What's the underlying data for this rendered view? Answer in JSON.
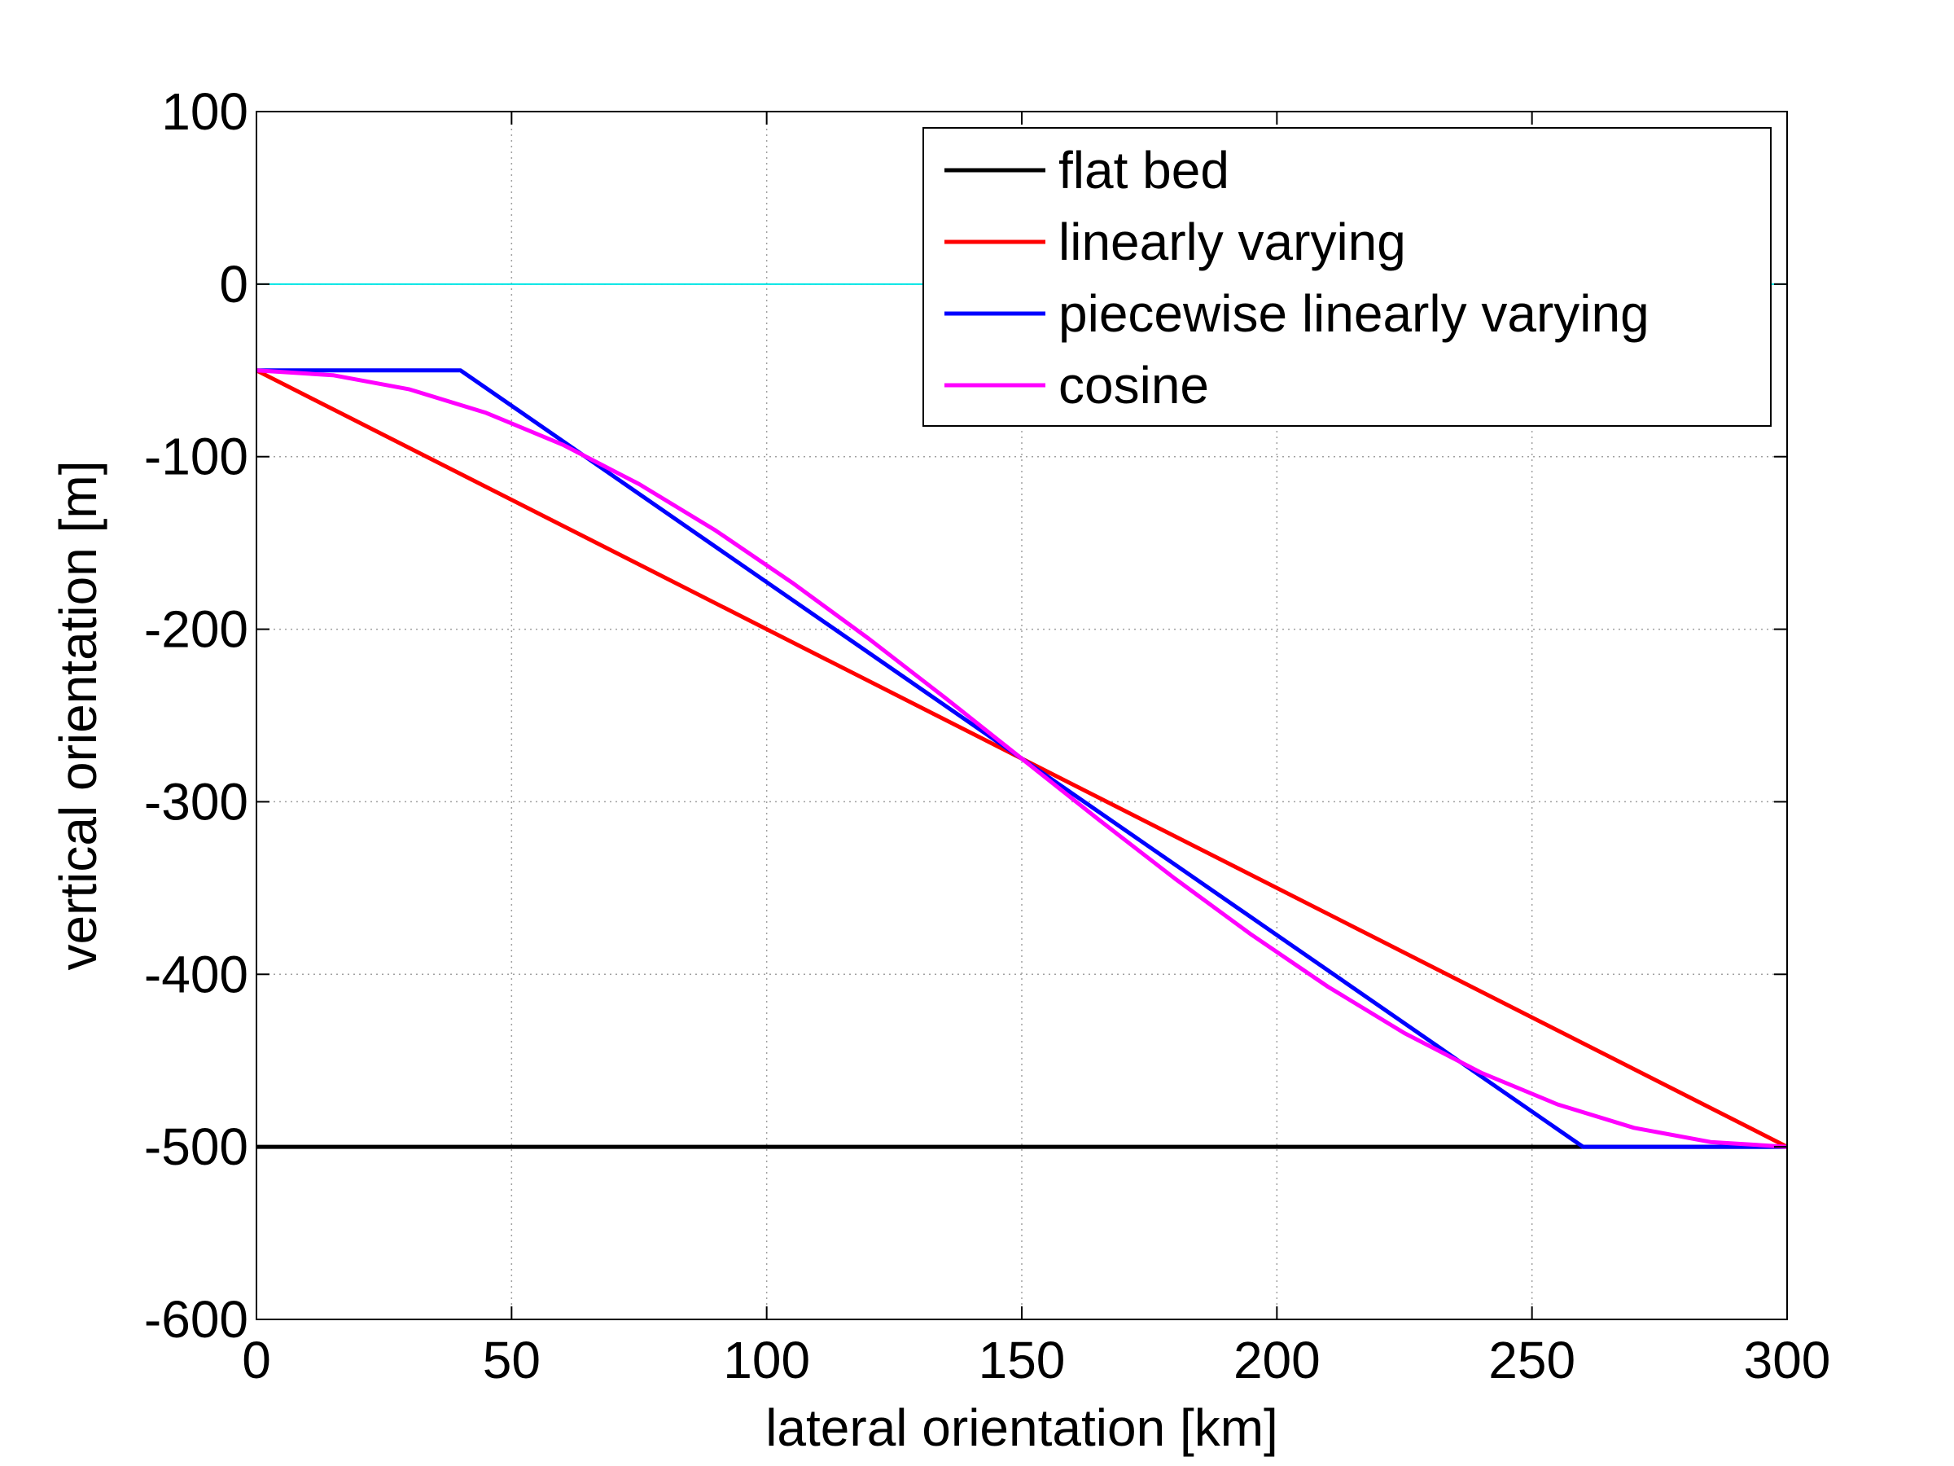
{
  "chart_data": {
    "type": "line",
    "title": "",
    "xlabel": "lateral orientation [km]",
    "ylabel": "vertical orientation [m]",
    "xlim": [
      0,
      300
    ],
    "ylim": [
      -600,
      100
    ],
    "xticks": [
      0,
      50,
      100,
      150,
      200,
      250,
      300
    ],
    "yticks": [
      100,
      0,
      -100,
      -200,
      -300,
      -400,
      -500,
      -600
    ],
    "grid": true,
    "legend_position": "top-right",
    "series": [
      {
        "name": "flat bed",
        "color": "#000000",
        "x": [
          0,
          300
        ],
        "y": [
          -500,
          -500
        ]
      },
      {
        "name": "linearly varying",
        "color": "#ff0000",
        "x": [
          0,
          300
        ],
        "y": [
          -50,
          -500
        ]
      },
      {
        "name": "piecewise linearly varying",
        "color": "#0000ff",
        "x": [
          0,
          40,
          260,
          300
        ],
        "y": [
          -50,
          -50,
          -500,
          -500
        ]
      },
      {
        "name": "cosine",
        "color": "#ff00ff",
        "x": [
          0,
          15,
          30,
          45,
          60,
          75,
          90,
          105,
          120,
          135,
          150,
          165,
          180,
          195,
          210,
          225,
          240,
          255,
          270,
          285,
          300
        ],
        "y": [
          -50,
          -52.8,
          -61,
          -74.6,
          -93,
          -115.9,
          -142.8,
          -173,
          -205.5,
          -239.8,
          -275,
          -310.2,
          -344.5,
          -377,
          -407.2,
          -434.1,
          -457,
          -475.4,
          -489,
          -497.2,
          -500
        ]
      }
    ],
    "reference_line": {
      "color": "#00e5e5",
      "y": 0
    }
  }
}
